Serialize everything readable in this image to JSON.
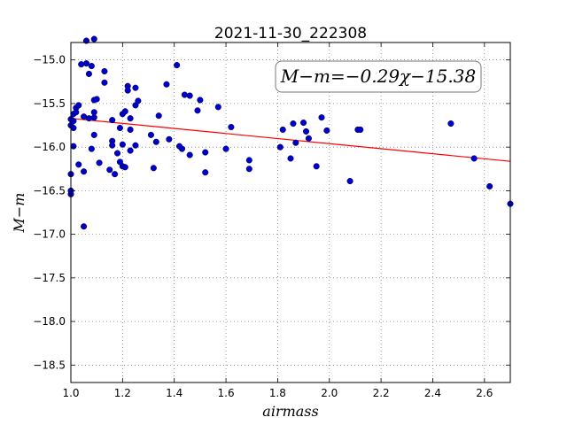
{
  "chart_data": {
    "type": "scatter",
    "title": "2021-11-30_222308",
    "xlabel": "airmass",
    "ylabel": "M−m",
    "xlim": [
      1.0,
      2.7
    ],
    "ylim": [
      -18.7,
      -14.8
    ],
    "y_inverted": true,
    "grid": true,
    "x_ticks": [
      1.0,
      1.2,
      1.4,
      1.6,
      1.8,
      2.0,
      2.2,
      2.4,
      2.6
    ],
    "x_tick_labels": [
      "1.0",
      "1.2",
      "1.4",
      "1.6",
      "1.8",
      "2.0",
      "2.2",
      "2.4",
      "2.6"
    ],
    "y_ticks": [
      -15.0,
      -15.5,
      -16.0,
      -16.5,
      -17.0,
      -17.5,
      -18.0,
      -18.5
    ],
    "y_tick_labels": [
      "−15.0",
      "−15.5",
      "−16.0",
      "−16.5",
      "−17.0",
      "−17.5",
      "−18.0",
      "−18.5"
    ],
    "annotation": "M−m=−0.29χ−15.38",
    "fit": {
      "slope": -0.29,
      "intercept": -15.38,
      "color": "#ff0000"
    },
    "series": [
      {
        "marker_color": "#0000cc",
        "points": [
          [
            1.0,
            -15.68
          ],
          [
            1.0,
            -15.75
          ],
          [
            1.0,
            -16.31
          ],
          [
            1.0,
            -16.5
          ],
          [
            1.0,
            -16.54
          ],
          [
            1.01,
            -15.62
          ],
          [
            1.01,
            -15.7
          ],
          [
            1.01,
            -15.78
          ],
          [
            1.01,
            -15.99
          ],
          [
            1.02,
            -15.55
          ],
          [
            1.02,
            -15.6
          ],
          [
            1.03,
            -15.52
          ],
          [
            1.03,
            -16.2
          ],
          [
            1.04,
            -15.05
          ],
          [
            1.05,
            -15.65
          ],
          [
            1.05,
            -16.28
          ],
          [
            1.05,
            -16.91
          ],
          [
            1.06,
            -14.78
          ],
          [
            1.06,
            -15.04
          ],
          [
            1.07,
            -15.16
          ],
          [
            1.07,
            -15.67
          ],
          [
            1.08,
            -16.02
          ],
          [
            1.08,
            -15.07
          ],
          [
            1.09,
            -14.76
          ],
          [
            1.09,
            -15.46
          ],
          [
            1.09,
            -15.6
          ],
          [
            1.09,
            -15.66
          ],
          [
            1.09,
            -15.86
          ],
          [
            1.1,
            -15.45
          ],
          [
            1.11,
            -16.18
          ],
          [
            1.13,
            -15.13
          ],
          [
            1.13,
            -15.26
          ],
          [
            1.15,
            -16.26
          ],
          [
            1.16,
            -15.69
          ],
          [
            1.16,
            -15.93
          ],
          [
            1.16,
            -15.98
          ],
          [
            1.17,
            -16.31
          ],
          [
            1.18,
            -16.07
          ],
          [
            1.19,
            -16.17
          ],
          [
            1.19,
            -15.78
          ],
          [
            1.2,
            -15.62
          ],
          [
            1.2,
            -15.97
          ],
          [
            1.2,
            -16.22
          ],
          [
            1.21,
            -15.59
          ],
          [
            1.21,
            -16.23
          ],
          [
            1.22,
            -15.3
          ],
          [
            1.22,
            -15.35
          ],
          [
            1.23,
            -15.67
          ],
          [
            1.23,
            -16.04
          ],
          [
            1.23,
            -15.8
          ],
          [
            1.25,
            -15.52
          ],
          [
            1.25,
            -15.32
          ],
          [
            1.25,
            -15.98
          ],
          [
            1.26,
            -15.47
          ],
          [
            1.31,
            -15.86
          ],
          [
            1.32,
            -16.24
          ],
          [
            1.33,
            -15.94
          ],
          [
            1.34,
            -15.64
          ],
          [
            1.37,
            -15.28
          ],
          [
            1.38,
            -15.91
          ],
          [
            1.41,
            -15.06
          ],
          [
            1.42,
            -15.99
          ],
          [
            1.43,
            -16.02
          ],
          [
            1.44,
            -15.4
          ],
          [
            1.46,
            -15.41
          ],
          [
            1.46,
            -16.09
          ],
          [
            1.49,
            -15.58
          ],
          [
            1.5,
            -15.46
          ],
          [
            1.52,
            -16.29
          ],
          [
            1.52,
            -16.06
          ],
          [
            1.57,
            -15.54
          ],
          [
            1.6,
            -16.02
          ],
          [
            1.62,
            -15.77
          ],
          [
            1.69,
            -16.25
          ],
          [
            1.69,
            -16.15
          ],
          [
            1.81,
            -16.0
          ],
          [
            1.82,
            -15.8
          ],
          [
            1.85,
            -16.13
          ],
          [
            1.86,
            -15.73
          ],
          [
            1.87,
            -15.95
          ],
          [
            1.9,
            -15.72
          ],
          [
            1.91,
            -15.82
          ],
          [
            1.92,
            -15.9
          ],
          [
            1.95,
            -16.22
          ],
          [
            1.97,
            -15.66
          ],
          [
            1.99,
            -15.81
          ],
          [
            2.08,
            -16.39
          ],
          [
            2.11,
            -15.8
          ],
          [
            2.12,
            -15.8
          ],
          [
            2.47,
            -15.73
          ],
          [
            2.56,
            -16.13
          ],
          [
            2.62,
            -16.45
          ],
          [
            2.7,
            -16.65
          ]
        ]
      }
    ]
  }
}
